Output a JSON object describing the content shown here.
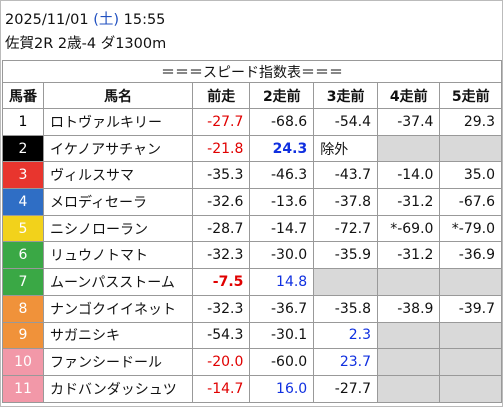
{
  "header": {
    "date": "2025/11/01",
    "weekday": "(土)",
    "time": "15:55",
    "race": "佐賀2R 2歳-4 ダ1300m"
  },
  "table": {
    "title": "＝＝＝スピード指数表＝＝＝",
    "columns": [
      "馬番",
      "馬名",
      "前走",
      "2走前",
      "3走前",
      "4走前",
      "5走前"
    ],
    "rows": [
      {
        "number": "1",
        "frame_color": "#ffffff",
        "number_color": "#000000",
        "name": "ロトヴァルキリー",
        "cells": [
          {
            "text": "-27.7",
            "color": "#e00000"
          },
          "-68.6",
          "-54.4",
          "-37.4",
          "29.3"
        ]
      },
      {
        "number": "2",
        "frame_color": "#000000",
        "number_color": "#ffffff",
        "name": "イケノアサチャン",
        "cells": [
          {
            "text": "-21.8",
            "color": "#e00000"
          },
          {
            "text": "24.3",
            "color": "#1030e0",
            "bold": true
          },
          {
            "text": "除外",
            "align": "left"
          },
          null,
          null
        ]
      },
      {
        "number": "3",
        "frame_color": "#e8352e",
        "number_color": "#ffffff",
        "name": "ヴィルスサマ",
        "cells": [
          "-35.3",
          "-46.3",
          "-43.7",
          "-14.0",
          "35.0"
        ]
      },
      {
        "number": "4",
        "frame_color": "#2f6ec5",
        "number_color": "#ffffff",
        "name": "メロディセーラ",
        "cells": [
          "-32.6",
          "-13.6",
          "-37.8",
          "-31.2",
          "-67.6"
        ]
      },
      {
        "number": "5",
        "frame_color": "#f2d21b",
        "number_color": "#ffffff",
        "name": "ニシノローラン",
        "cells": [
          "-28.7",
          "-14.7",
          "-72.7",
          "*-69.0",
          "*-79.0"
        ]
      },
      {
        "number": "6",
        "frame_color": "#3aa845",
        "number_color": "#ffffff",
        "name": "リュウノトマト",
        "cells": [
          "-32.3",
          "-30.0",
          "-35.9",
          "-31.2",
          "-36.9"
        ]
      },
      {
        "number": "7",
        "frame_color": "#3aa845",
        "number_color": "#ffffff",
        "name": "ムーンパスストーム",
        "cells": [
          {
            "text": "-7.5",
            "color": "#e00000",
            "bold": true
          },
          {
            "text": "14.8",
            "color": "#1030e0"
          },
          null,
          null,
          null
        ]
      },
      {
        "number": "8",
        "frame_color": "#f0923a",
        "number_color": "#ffffff",
        "name": "ナンゴクイイネット",
        "cells": [
          "-32.3",
          "-36.7",
          "-35.8",
          "-38.9",
          "-39.7"
        ]
      },
      {
        "number": "9",
        "frame_color": "#f0923a",
        "number_color": "#ffffff",
        "name": "サガニシキ",
        "cells": [
          "-54.3",
          "-30.1",
          {
            "text": "2.3",
            "color": "#1030e0"
          },
          null,
          null
        ]
      },
      {
        "number": "10",
        "frame_color": "#f298a8",
        "number_color": "#ffffff",
        "name": "ファンシードール",
        "cells": [
          {
            "text": "-20.0",
            "color": "#e00000"
          },
          "-60.0",
          {
            "text": "23.7",
            "color": "#1030e0"
          },
          null,
          null
        ]
      },
      {
        "number": "11",
        "frame_color": "#f298a8",
        "number_color": "#ffffff",
        "name": "カドバンダッシュツ",
        "cells": [
          {
            "text": "-14.7",
            "color": "#e00000"
          },
          {
            "text": "16.0",
            "color": "#1030e0"
          },
          "-27.7",
          null,
          null
        ]
      }
    ]
  }
}
